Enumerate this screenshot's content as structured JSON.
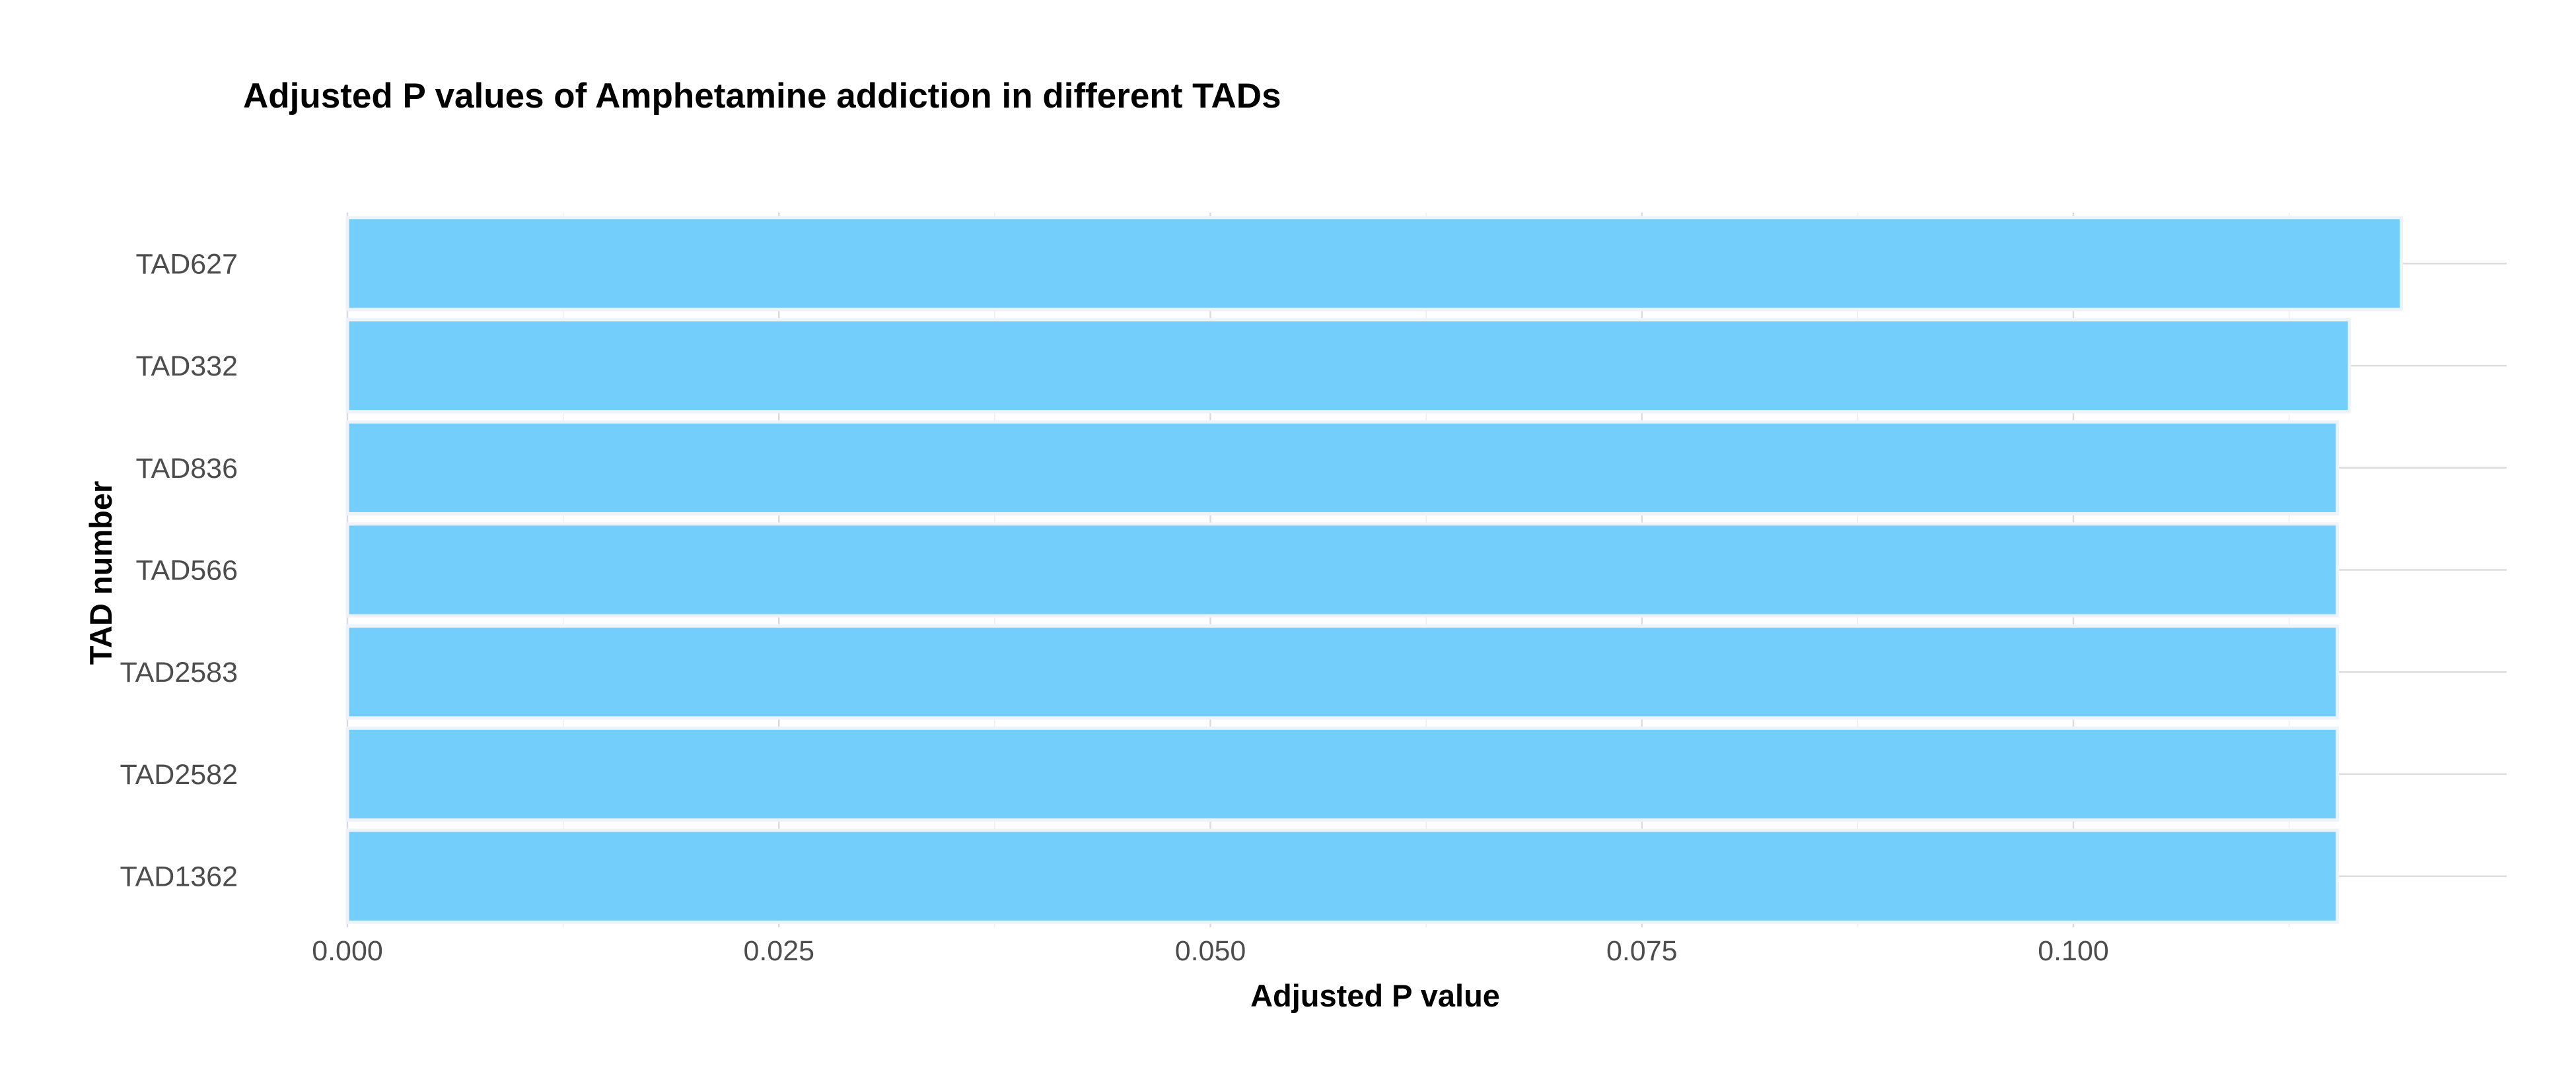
{
  "chart_data": {
    "type": "bar",
    "orientation": "horizontal",
    "title": "Adjusted P values of Amphetamine addiction in different TADs",
    "xlabel": "Adjusted P value",
    "ylabel": "TAD number",
    "categories": [
      "TAD627",
      "TAD332",
      "TAD836",
      "TAD566",
      "TAD2583",
      "TAD2582",
      "TAD1362"
    ],
    "values": [
      0.119,
      0.116,
      0.1153,
      0.1153,
      0.1153,
      0.1153,
      0.1153
    ],
    "xlim": [
      0,
      0.125
    ],
    "xticks": [
      0.0,
      0.025,
      0.05,
      0.075,
      0.1
    ],
    "xtick_labels": [
      "0.000",
      "0.025",
      "0.050",
      "0.075",
      "0.100"
    ],
    "bar_color": "#73cefb",
    "grid": true,
    "legend": "none"
  }
}
